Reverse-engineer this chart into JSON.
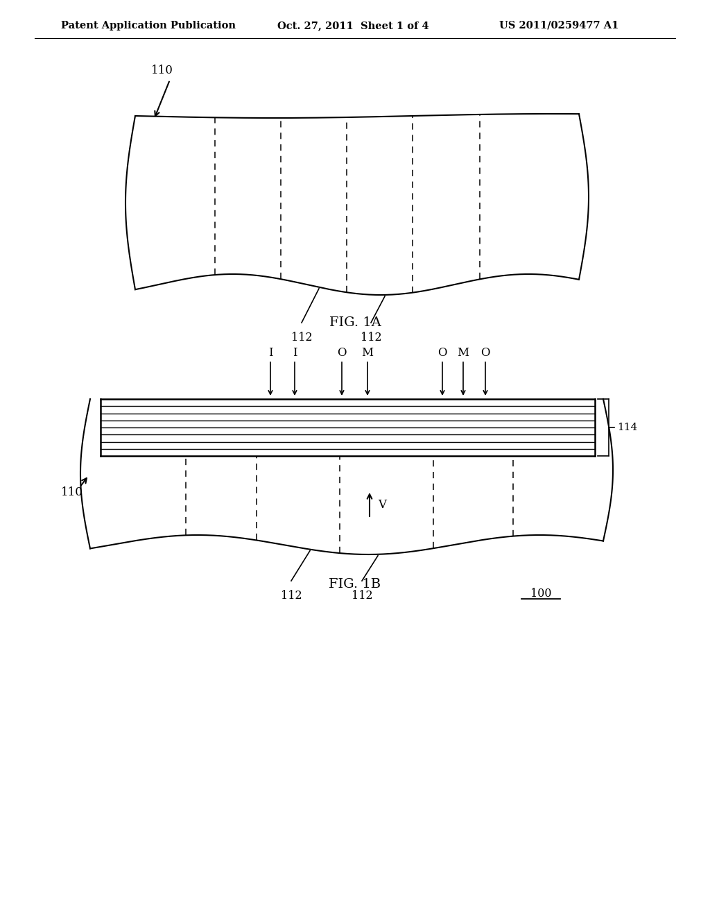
{
  "bg_color": "#ffffff",
  "header_left": "Patent Application Publication",
  "header_center": "Oct. 27, 2011  Sheet 1 of 4",
  "header_right": "US 2011/0259477 A1",
  "fig1a_label": "FIG. 1A",
  "fig1b_label": "FIG. 1B",
  "line_color": "#000000"
}
